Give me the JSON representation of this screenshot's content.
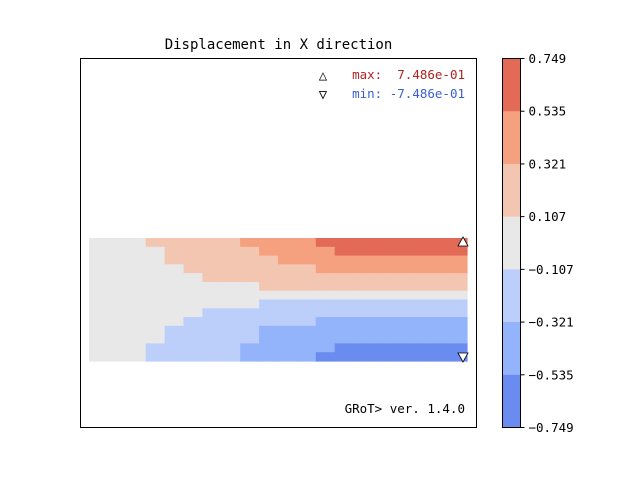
{
  "chart_data": {
    "type": "heatmap",
    "title": "Displacement in X direction",
    "annotations": {
      "max_marker": "△",
      "max_label": "max:  7.486e-01",
      "min_marker": "▽",
      "min_label": "min: -7.486e-01",
      "version": "GRoT> ver. 1.4.0"
    },
    "colorbar": {
      "range": [
        -0.749,
        0.749
      ],
      "ticks": [
        "0.749",
        "0.535",
        "0.321",
        "0.107",
        "−0.107",
        "−0.321",
        "−0.535",
        "−0.749"
      ],
      "levels": [
        {
          "color": "#6a8bef"
        },
        {
          "color": "#93b3fb"
        },
        {
          "color": "#bccefa"
        },
        {
          "color": "#e8e8e8"
        },
        {
          "color": "#f3c6b1"
        },
        {
          "color": "#f5a07f"
        },
        {
          "color": "#e26a56"
        }
      ]
    },
    "domain": {
      "x": [
        0,
        20
      ],
      "y": [
        0,
        7
      ]
    },
    "field_rows": [
      [
        3,
        3,
        3,
        4,
        4,
        4,
        4,
        4,
        5,
        5,
        5,
        5,
        6,
        6,
        6,
        6,
        6,
        6,
        6,
        6
      ],
      [
        3,
        3,
        3,
        3,
        4,
        4,
        4,
        4,
        4,
        5,
        5,
        5,
        5,
        6,
        6,
        6,
        6,
        6,
        6,
        6
      ],
      [
        3,
        3,
        3,
        3,
        4,
        4,
        4,
        4,
        4,
        4,
        5,
        5,
        5,
        5,
        5,
        5,
        5,
        5,
        5,
        5
      ],
      [
        3,
        3,
        3,
        3,
        3,
        4,
        4,
        4,
        4,
        4,
        4,
        4,
        5,
        5,
        5,
        5,
        5,
        5,
        5,
        5
      ],
      [
        3,
        3,
        3,
        3,
        3,
        3,
        4,
        4,
        4,
        4,
        4,
        4,
        4,
        4,
        4,
        4,
        4,
        4,
        4,
        4
      ],
      [
        3,
        3,
        3,
        3,
        3,
        3,
        3,
        3,
        3,
        4,
        4,
        4,
        4,
        4,
        4,
        4,
        4,
        4,
        4,
        4
      ],
      [
        3,
        3,
        3,
        3,
        3,
        3,
        3,
        3,
        3,
        3,
        3,
        3,
        3,
        3,
        3,
        3,
        3,
        3,
        3,
        3
      ],
      [
        3,
        3,
        3,
        3,
        3,
        3,
        3,
        3,
        3,
        2,
        2,
        2,
        2,
        2,
        2,
        2,
        2,
        2,
        2,
        2
      ],
      [
        3,
        3,
        3,
        3,
        3,
        3,
        2,
        2,
        2,
        2,
        2,
        2,
        2,
        2,
        2,
        2,
        2,
        2,
        2,
        2
      ],
      [
        3,
        3,
        3,
        3,
        3,
        2,
        2,
        2,
        2,
        2,
        2,
        2,
        1,
        1,
        1,
        1,
        1,
        1,
        1,
        1
      ],
      [
        3,
        3,
        3,
        3,
        2,
        2,
        2,
        2,
        2,
        1,
        1,
        1,
        1,
        1,
        1,
        1,
        1,
        1,
        1,
        1
      ],
      [
        3,
        3,
        3,
        3,
        2,
        2,
        2,
        2,
        2,
        1,
        1,
        1,
        1,
        1,
        1,
        1,
        1,
        1,
        1,
        1
      ],
      [
        3,
        3,
        3,
        2,
        2,
        2,
        2,
        2,
        1,
        1,
        1,
        1,
        1,
        0,
        0,
        0,
        0,
        0,
        0,
        0
      ],
      [
        3,
        3,
        3,
        2,
        2,
        2,
        2,
        2,
        1,
        1,
        1,
        1,
        0,
        0,
        0,
        0,
        0,
        0,
        0,
        0
      ]
    ]
  }
}
